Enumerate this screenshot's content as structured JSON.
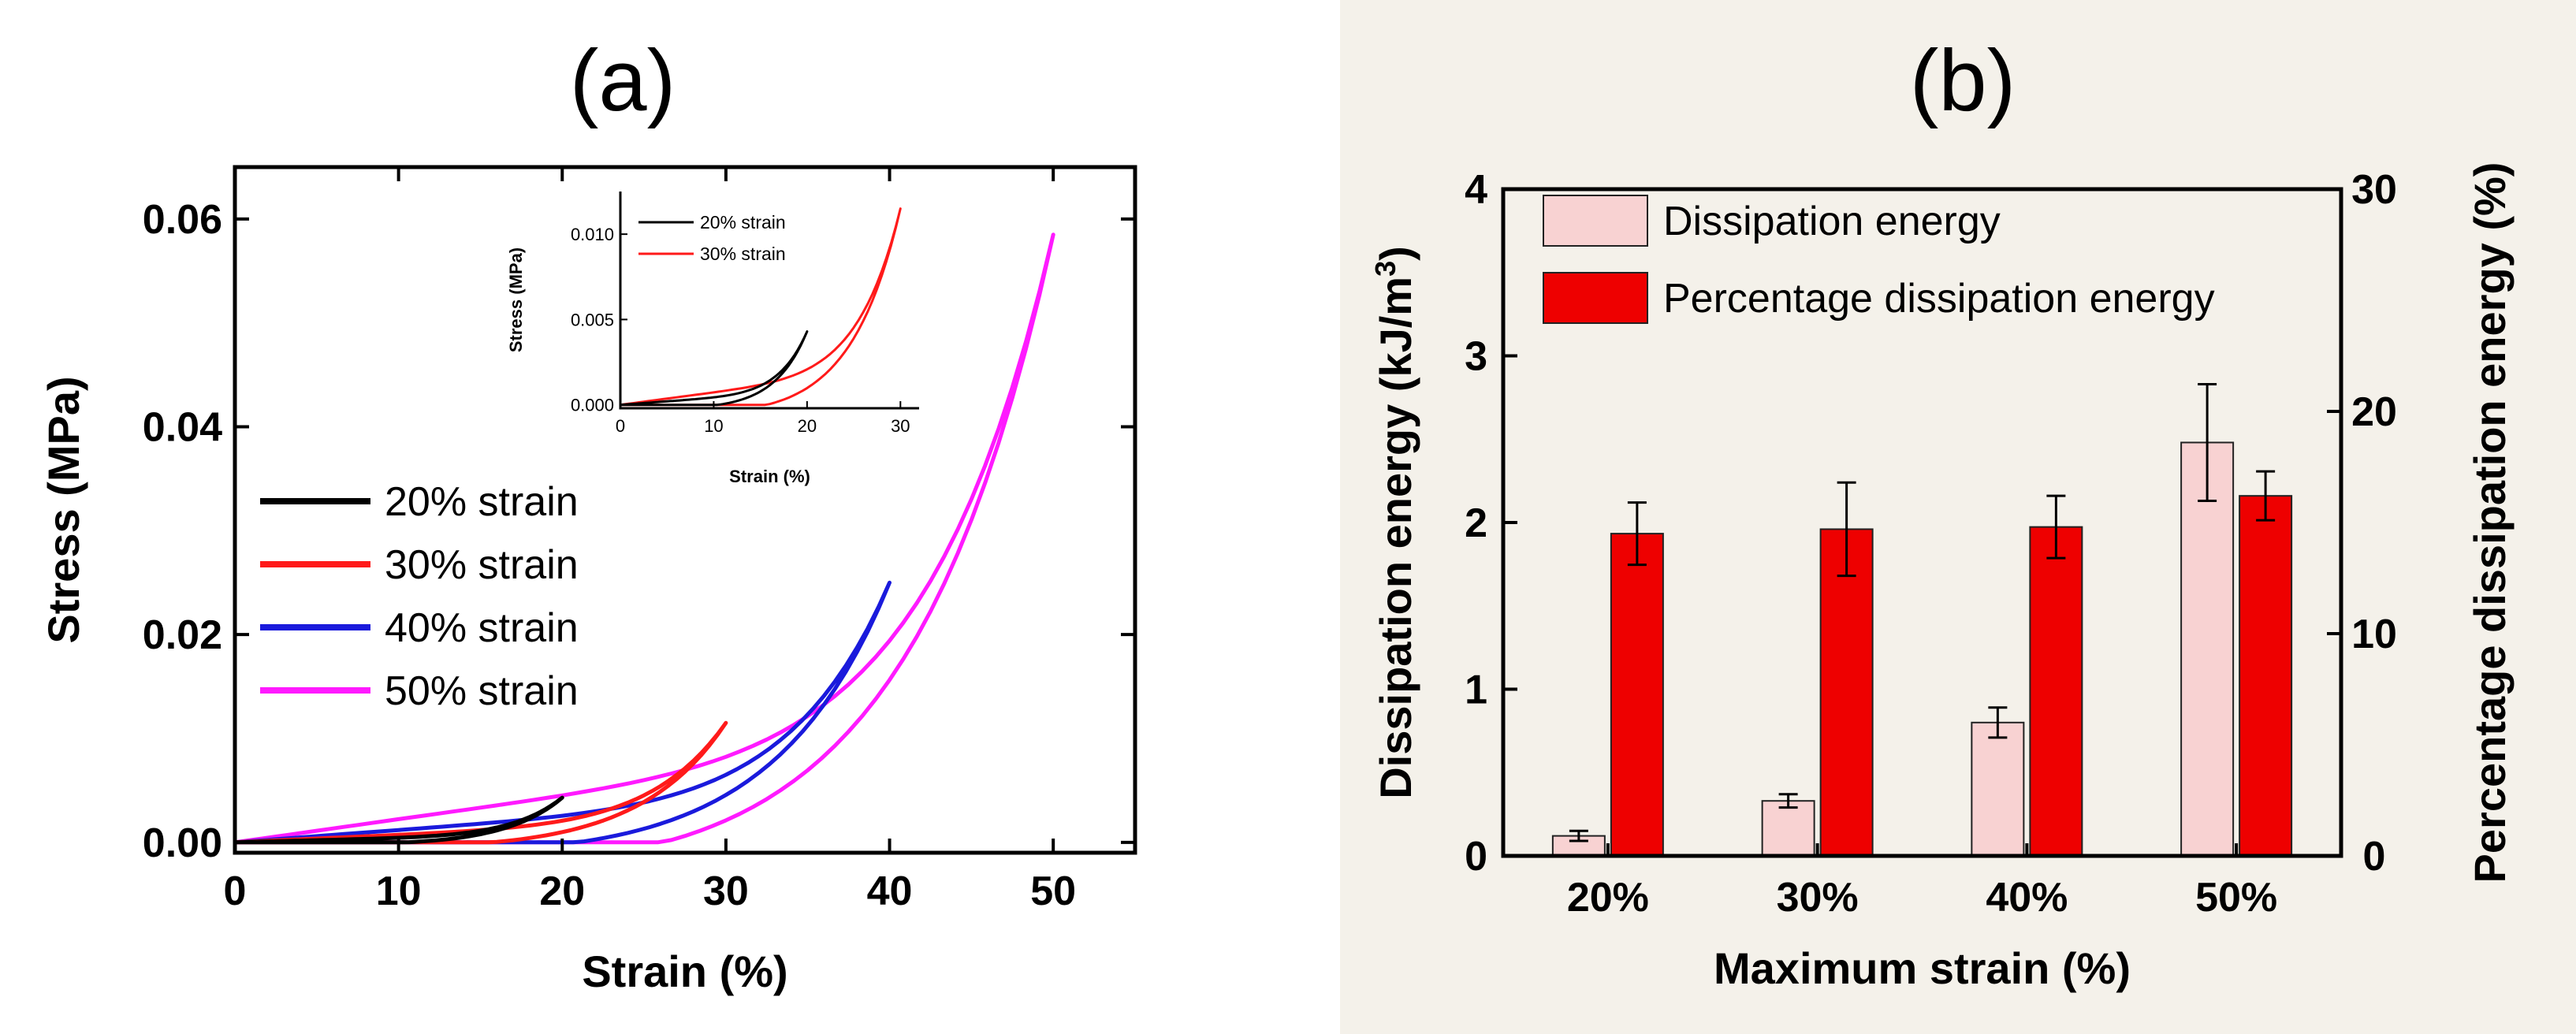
{
  "panel_a": {
    "label": "(a)",
    "chart_data": {
      "type": "line",
      "xlabel": "Strain (%)",
      "ylabel": "Stress (MPa)",
      "xlim": [
        0,
        55
      ],
      "ylim": [
        -0.001,
        0.065
      ],
      "xticks": [
        0,
        10,
        20,
        30,
        40,
        50
      ],
      "yticks": [
        0.0,
        0.02,
        0.04,
        0.06
      ],
      "ytick_labels": [
        "0.00",
        "0.02",
        "0.04",
        "0.06"
      ],
      "legend_location": "center-left",
      "series": [
        {
          "name": "20% strain",
          "color": "#000000",
          "max_strain": 20,
          "max_stress": 0.0043
        },
        {
          "name": "30% strain",
          "color": "#ff1a1a",
          "max_strain": 30,
          "max_stress": 0.0115
        },
        {
          "name": "40% strain",
          "color": "#1a1adc",
          "max_strain": 40,
          "max_stress": 0.025
        },
        {
          "name": "50% strain",
          "color": "#ff1aff",
          "max_strain": 50,
          "max_stress": 0.0585
        }
      ],
      "inset": {
        "xlabel": "Strain (%)",
        "ylabel": "Stress (MPa)",
        "xlim": [
          0,
          32
        ],
        "ylim": [
          -0.0002,
          0.0125
        ],
        "xticks": [
          0,
          10,
          20,
          30
        ],
        "yticks": [
          0.0,
          0.005,
          0.01
        ],
        "ytick_labels": [
          "0.000",
          "0.005",
          "0.010"
        ],
        "series": [
          {
            "name": "20% strain",
            "color": "#000000",
            "max_strain": 20,
            "max_stress": 0.0043
          },
          {
            "name": "30% strain",
            "color": "#ff1a1a",
            "max_strain": 30,
            "max_stress": 0.0115
          }
        ]
      }
    }
  },
  "panel_b": {
    "label": "(b)",
    "chart_data": {
      "type": "bar",
      "xlabel": "Maximum strain (%)",
      "ylabel_left": "Dissipation energy (kJ/m",
      "ylabel_left_sup": "3",
      "ylabel_left_close": ")",
      "ylabel_right": "Percentage dissipation energy (%)",
      "categories": [
        "20%",
        "30%",
        "40%",
        "50%"
      ],
      "ylim_left": [
        0,
        4
      ],
      "ylim_right": [
        0,
        30
      ],
      "yticks_left": [
        0,
        1,
        2,
        3,
        4
      ],
      "yticks_right": [
        0,
        10,
        20,
        30
      ],
      "legend_location": "top-left",
      "series": [
        {
          "name": "Dissipation energy",
          "axis": "left",
          "color": "#f8d2d2",
          "values": [
            0.12,
            0.33,
            0.8,
            2.48
          ],
          "errors": [
            0.03,
            0.04,
            0.09,
            0.35
          ]
        },
        {
          "name": "Percentage dissipation energy",
          "axis": "right",
          "color": "#ee0000",
          "values": [
            14.5,
            14.7,
            14.8,
            16.2
          ],
          "errors": [
            1.4,
            2.1,
            1.4,
            1.1
          ]
        }
      ]
    }
  }
}
